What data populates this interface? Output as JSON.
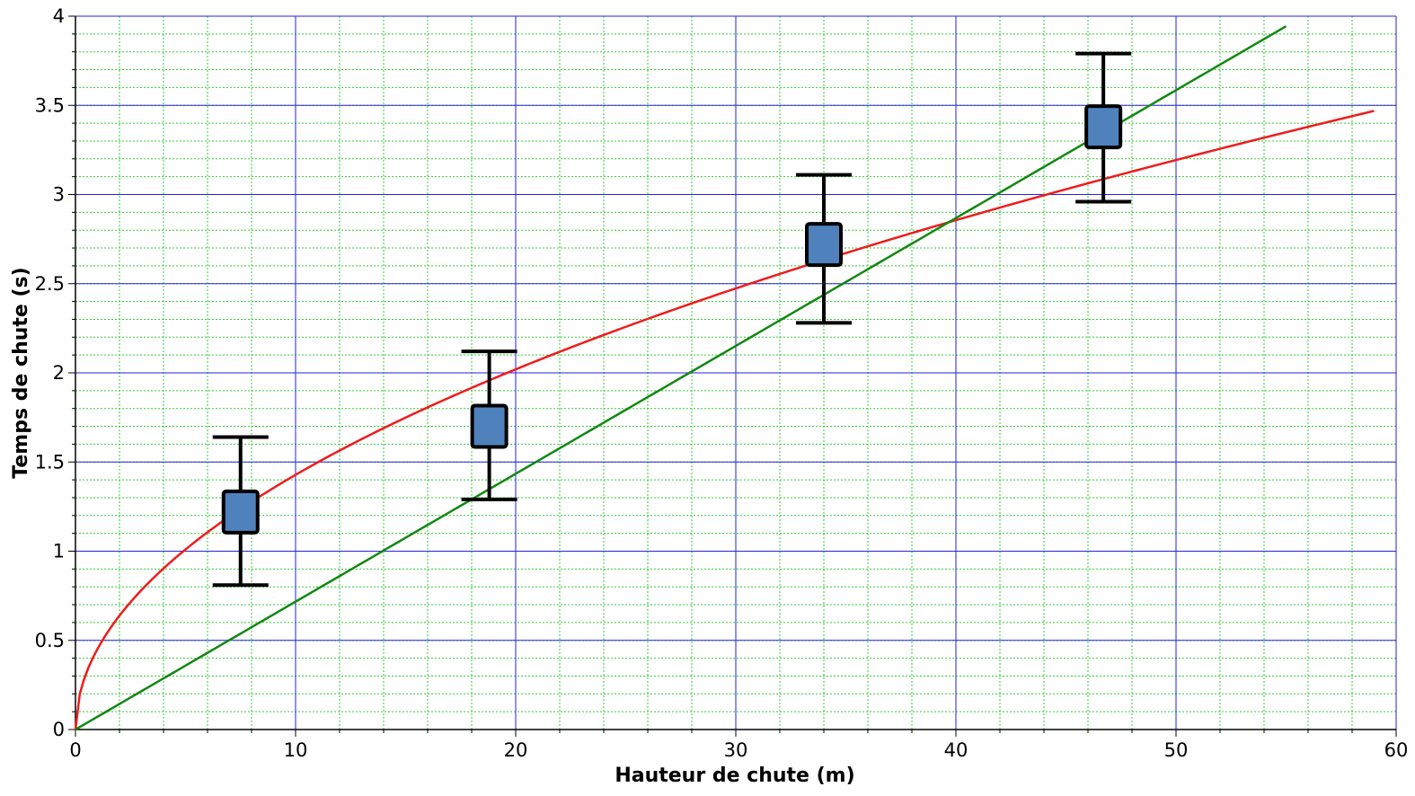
{
  "chart_data": {
    "type": "scatter",
    "xlabel": "Hauteur de chute (m)",
    "ylabel": "Temps de chute (s)",
    "xlim": [
      0,
      60
    ],
    "ylim": [
      0,
      4
    ],
    "x_major_ticks": [
      0,
      10,
      20,
      30,
      40,
      50,
      60
    ],
    "y_major_ticks": [
      0,
      0.5,
      1,
      1.5,
      2,
      2.5,
      3,
      3.5,
      4
    ],
    "x_tick_labels": [
      "0",
      "10",
      "20",
      "30",
      "40",
      "50",
      "60"
    ],
    "y_tick_labels": [
      "0",
      "0.5",
      "1",
      "1.5",
      "2",
      "2.5",
      "3",
      "3.5",
      "4"
    ],
    "x_minor_step": 2,
    "y_minor_step": 0.1,
    "grid": true,
    "colors": {
      "major_grid": "#2222dd",
      "minor_grid": "#33cc33",
      "marker_fill": "#4f81bd",
      "marker_edge": "#000000",
      "error_bar": "#000000"
    },
    "points": {
      "x": [
        7.5,
        18.8,
        34.0,
        46.7
      ],
      "y": [
        1.22,
        1.7,
        2.72,
        3.38
      ],
      "err_low": [
        0.81,
        1.29,
        2.28,
        2.96
      ],
      "err_high": [
        1.64,
        2.12,
        3.11,
        3.79
      ]
    },
    "curves": [
      {
        "kind": "sqrt",
        "coefficient": 0.4516,
        "x_range": [
          0,
          59
        ],
        "color": "#ee1c1c"
      },
      {
        "kind": "linear",
        "slope": 0.0717,
        "x_range": [
          0,
          55
        ],
        "color": "#118811"
      }
    ]
  }
}
